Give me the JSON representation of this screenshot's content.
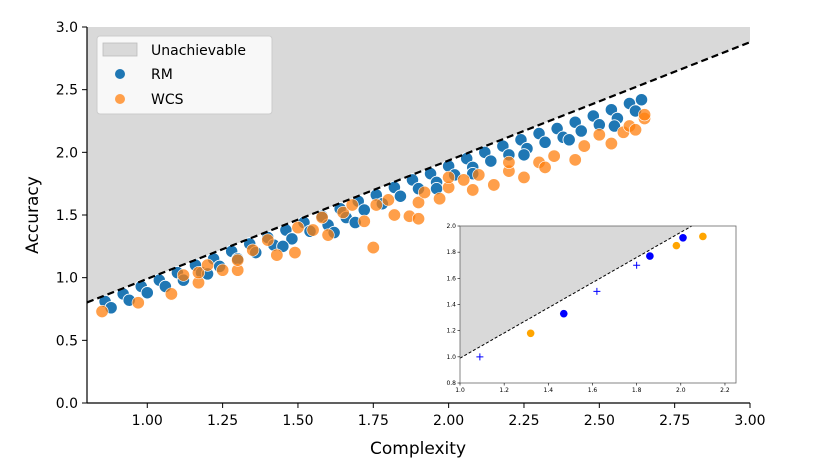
{
  "chart_data": {
    "type": "scatter",
    "xlabel": "Complexity",
    "ylabel": "Accuracy",
    "xlim": [
      0.8,
      3.0
    ],
    "ylim": [
      0.0,
      3.0
    ],
    "xticks": [
      "1.00",
      "1.25",
      "1.50",
      "1.75",
      "2.00",
      "2.25",
      "2.50",
      "2.75",
      "3.00"
    ],
    "yticks": [
      "0.0",
      "0.5",
      "1.0",
      "1.5",
      "2.0",
      "2.5",
      "3.0"
    ],
    "grid": false,
    "legend_placement": "top-left",
    "boundary": {
      "label": "Unachievable",
      "slope": 0.944,
      "intercept": 0.047,
      "style": "dashed",
      "fill": "#d9d9d9"
    },
    "series": [
      {
        "name": "RM",
        "color": "#1f77b4",
        "points": [
          [
            0.86,
            0.81
          ],
          [
            0.88,
            0.76
          ],
          [
            0.92,
            0.87
          ],
          [
            0.94,
            0.82
          ],
          [
            0.98,
            0.93
          ],
          [
            1.0,
            0.88
          ],
          [
            1.04,
            0.98
          ],
          [
            1.06,
            0.93
          ],
          [
            1.1,
            1.04
          ],
          [
            1.12,
            0.98
          ],
          [
            1.16,
            1.1
          ],
          [
            1.18,
            1.04
          ],
          [
            1.22,
            1.15
          ],
          [
            1.24,
            1.09
          ],
          [
            1.28,
            1.21
          ],
          [
            1.3,
            1.15
          ],
          [
            1.34,
            1.27
          ],
          [
            1.36,
            1.2
          ],
          [
            1.4,
            1.32
          ],
          [
            1.42,
            1.26
          ],
          [
            1.46,
            1.38
          ],
          [
            1.48,
            1.31
          ],
          [
            1.52,
            1.44
          ],
          [
            1.54,
            1.37
          ],
          [
            1.58,
            1.49
          ],
          [
            1.6,
            1.42
          ],
          [
            1.64,
            1.55
          ],
          [
            1.66,
            1.48
          ],
          [
            1.7,
            1.61
          ],
          [
            1.72,
            1.54
          ],
          [
            1.76,
            1.66
          ],
          [
            1.78,
            1.59
          ],
          [
            1.82,
            1.72
          ],
          [
            1.84,
            1.65
          ],
          [
            1.88,
            1.78
          ],
          [
            1.9,
            1.71
          ],
          [
            1.94,
            1.83
          ],
          [
            1.96,
            1.76
          ],
          [
            2.0,
            1.89
          ],
          [
            2.02,
            1.82
          ],
          [
            2.06,
            1.95
          ],
          [
            2.08,
            1.88
          ],
          [
            2.12,
            2.0
          ],
          [
            2.14,
            1.93
          ],
          [
            2.18,
            2.05
          ],
          [
            2.2,
            1.98
          ],
          [
            2.24,
            2.1
          ],
          [
            2.26,
            2.03
          ],
          [
            2.3,
            2.15
          ],
          [
            2.32,
            2.08
          ],
          [
            2.36,
            2.19
          ],
          [
            2.38,
            2.12
          ],
          [
            2.42,
            2.24
          ],
          [
            2.44,
            2.17
          ],
          [
            2.48,
            2.29
          ],
          [
            2.5,
            2.22
          ],
          [
            2.54,
            2.34
          ],
          [
            2.56,
            2.27
          ],
          [
            2.6,
            2.39
          ],
          [
            2.62,
            2.33
          ],
          [
            2.64,
            2.42
          ],
          [
            1.62,
            1.36
          ],
          [
            1.69,
            1.44
          ],
          [
            1.96,
            1.71
          ],
          [
            2.08,
            1.83
          ],
          [
            2.25,
            1.98
          ],
          [
            2.4,
            2.1
          ],
          [
            1.45,
            1.25
          ],
          [
            1.2,
            1.03
          ],
          [
            2.55,
            2.21
          ]
        ]
      },
      {
        "name": "WCS",
        "color": "#ff7f0e",
        "points": [
          [
            0.85,
            0.73
          ],
          [
            0.97,
            0.8
          ],
          [
            1.08,
            0.87
          ],
          [
            1.17,
            0.96
          ],
          [
            1.17,
            1.04
          ],
          [
            1.25,
            1.06
          ],
          [
            1.3,
            1.06
          ],
          [
            1.3,
            1.14
          ],
          [
            1.35,
            1.22
          ],
          [
            1.43,
            1.18
          ],
          [
            1.49,
            1.2
          ],
          [
            1.5,
            1.4
          ],
          [
            1.55,
            1.38
          ],
          [
            1.58,
            1.48
          ],
          [
            1.6,
            1.34
          ],
          [
            1.65,
            1.52
          ],
          [
            1.72,
            1.45
          ],
          [
            1.75,
            1.24
          ],
          [
            1.76,
            1.58
          ],
          [
            1.8,
            1.62
          ],
          [
            1.82,
            1.5
          ],
          [
            1.87,
            1.49
          ],
          [
            1.9,
            1.47
          ],
          [
            1.9,
            1.6
          ],
          [
            1.92,
            1.68
          ],
          [
            1.97,
            1.63
          ],
          [
            2.0,
            1.72
          ],
          [
            2.05,
            1.78
          ],
          [
            2.08,
            1.7
          ],
          [
            2.1,
            1.82
          ],
          [
            2.15,
            1.74
          ],
          [
            2.2,
            1.85
          ],
          [
            2.25,
            1.8
          ],
          [
            2.3,
            1.92
          ],
          [
            2.35,
            1.97
          ],
          [
            2.42,
            1.94
          ],
          [
            2.45,
            2.05
          ],
          [
            2.54,
            2.07
          ],
          [
            2.58,
            2.16
          ],
          [
            2.6,
            2.21
          ],
          [
            2.65,
            2.27
          ],
          [
            2.65,
            2.3
          ],
          [
            1.4,
            1.3
          ],
          [
            1.68,
            1.58
          ],
          [
            2.0,
            1.8
          ],
          [
            2.2,
            1.92
          ],
          [
            2.5,
            2.14
          ],
          [
            1.2,
            1.1
          ],
          [
            1.12,
            1.02
          ],
          [
            2.32,
            1.88
          ],
          [
            2.62,
            2.18
          ]
        ]
      }
    ],
    "inset": {
      "xlim": [
        1.0,
        2.25
      ],
      "ylim": [
        0.8,
        2.0
      ],
      "xticks": [
        "1.0",
        "1.2",
        "1.4",
        "1.6",
        "1.8",
        "2.0",
        "2.2"
      ],
      "yticks": [
        "0.8",
        "1.0",
        "1.2",
        "1.4",
        "1.6",
        "1.8",
        "2.0"
      ],
      "boundary": {
        "slope": 0.962,
        "intercept": 0.028
      },
      "plus_points": {
        "color": "#0000ff",
        "points": [
          [
            1.09,
            1.0
          ],
          [
            1.62,
            1.5
          ],
          [
            1.8,
            1.7
          ]
        ]
      },
      "blue_points": {
        "color": "#0000ff",
        "points": [
          [
            1.47,
            1.33
          ],
          [
            1.86,
            1.77
          ],
          [
            2.01,
            1.91
          ]
        ]
      },
      "orange_points": {
        "color": "#ffa500",
        "points": [
          [
            1.32,
            1.18
          ],
          [
            1.98,
            1.85
          ],
          [
            2.1,
            1.92
          ]
        ]
      }
    }
  }
}
